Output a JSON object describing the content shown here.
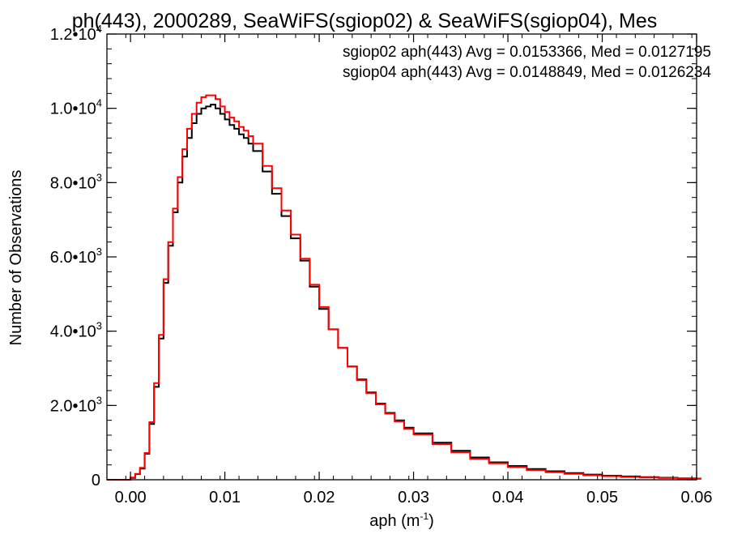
{
  "chart_data": {
    "type": "line",
    "title": "ph(443), 2000289, SeaWiFS(sgiop02) & SeaWiFS(sgiop04), Mes",
    "xlabel": "aph (m",
    "xlabel_sup": "-1",
    "xlabel_close": ")",
    "ylabel": "Number of Observations",
    "xlim": [
      -0.0025,
      0.06
    ],
    "ylim": [
      0,
      12000
    ],
    "x_ticks": [
      {
        "value": 0.0,
        "label": "0.00"
      },
      {
        "value": 0.01,
        "label": "0.01"
      },
      {
        "value": 0.02,
        "label": "0.02"
      },
      {
        "value": 0.03,
        "label": "0.03"
      },
      {
        "value": 0.04,
        "label": "0.04"
      },
      {
        "value": 0.05,
        "label": "0.05"
      },
      {
        "value": 0.06,
        "label": "0.06"
      }
    ],
    "y_ticks": [
      {
        "value": 0,
        "mant": "0",
        "exp": ""
      },
      {
        "value": 2000,
        "mant": "2.0•10",
        "exp": "3"
      },
      {
        "value": 4000,
        "mant": "4.0•10",
        "exp": "3"
      },
      {
        "value": 6000,
        "mant": "6.0•10",
        "exp": "3"
      },
      {
        "value": 8000,
        "mant": "8.0•10",
        "exp": "3"
      },
      {
        "value": 10000,
        "mant": "1.0•10",
        "exp": "4"
      },
      {
        "value": 12000,
        "mant": "1.2•10",
        "exp": "4"
      }
    ],
    "legend_position": "top-right",
    "series": [
      {
        "name": "sgiop02 aph(443) Avg = 0.0153366, Med = 0.0127195",
        "color": "#000000",
        "x": [
          -0.0025,
          -0.0015,
          -0.0005,
          0.0,
          0.0005,
          0.001,
          0.0015,
          0.002,
          0.0025,
          0.003,
          0.0035,
          0.004,
          0.0045,
          0.005,
          0.0055,
          0.006,
          0.0065,
          0.007,
          0.0075,
          0.008,
          0.0085,
          0.009,
          0.0095,
          0.01,
          0.0105,
          0.011,
          0.0115,
          0.012,
          0.0125,
          0.013,
          0.014,
          0.015,
          0.016,
          0.017,
          0.018,
          0.019,
          0.02,
          0.021,
          0.022,
          0.023,
          0.024,
          0.025,
          0.026,
          0.027,
          0.028,
          0.029,
          0.03,
          0.032,
          0.034,
          0.036,
          0.038,
          0.04,
          0.042,
          0.044,
          0.046,
          0.048,
          0.05,
          0.052,
          0.054,
          0.056,
          0.058,
          0.06
        ],
        "y": [
          0,
          0,
          0,
          50,
          150,
          300,
          700,
          1500,
          2500,
          3800,
          5300,
          6300,
          7200,
          8000,
          8700,
          9200,
          9600,
          9850,
          10000,
          10050,
          10100,
          10000,
          9850,
          9700,
          9550,
          9450,
          9300,
          9200,
          9050,
          8850,
          8300,
          7700,
          7100,
          6500,
          5900,
          5200,
          4600,
          4050,
          3550,
          3050,
          2700,
          2350,
          2050,
          1800,
          1600,
          1400,
          1250,
          1000,
          780,
          600,
          470,
          370,
          290,
          230,
          180,
          140,
          110,
          90,
          70,
          55,
          40,
          30
        ]
      },
      {
        "name": "sgiop04 aph(443) Avg = 0.0148849, Med = 0.0126234",
        "color": "#ff0000",
        "x": [
          -0.0025,
          -0.0015,
          -0.0005,
          0.0,
          0.0005,
          0.001,
          0.0015,
          0.002,
          0.0025,
          0.003,
          0.0035,
          0.004,
          0.0045,
          0.005,
          0.0055,
          0.006,
          0.0065,
          0.007,
          0.0075,
          0.008,
          0.0085,
          0.009,
          0.0095,
          0.01,
          0.0105,
          0.011,
          0.0115,
          0.012,
          0.0125,
          0.013,
          0.014,
          0.015,
          0.016,
          0.017,
          0.018,
          0.019,
          0.02,
          0.021,
          0.022,
          0.023,
          0.024,
          0.025,
          0.026,
          0.027,
          0.028,
          0.029,
          0.03,
          0.032,
          0.034,
          0.036,
          0.038,
          0.04,
          0.042,
          0.044,
          0.046,
          0.048,
          0.05,
          0.052,
          0.054,
          0.056,
          0.058,
          0.06
        ],
        "y": [
          0,
          0,
          0,
          60,
          160,
          320,
          720,
          1550,
          2600,
          3900,
          5400,
          6400,
          7300,
          8150,
          8900,
          9450,
          9850,
          10150,
          10300,
          10350,
          10350,
          10250,
          10050,
          9900,
          9750,
          9650,
          9500,
          9400,
          9250,
          9050,
          8450,
          7850,
          7250,
          6600,
          5950,
          5250,
          4650,
          4050,
          3550,
          3050,
          2680,
          2330,
          2030,
          1780,
          1570,
          1370,
          1220,
          960,
          740,
          560,
          440,
          340,
          260,
          200,
          160,
          120,
          95,
          75,
          60,
          45,
          35,
          25
        ]
      }
    ]
  }
}
